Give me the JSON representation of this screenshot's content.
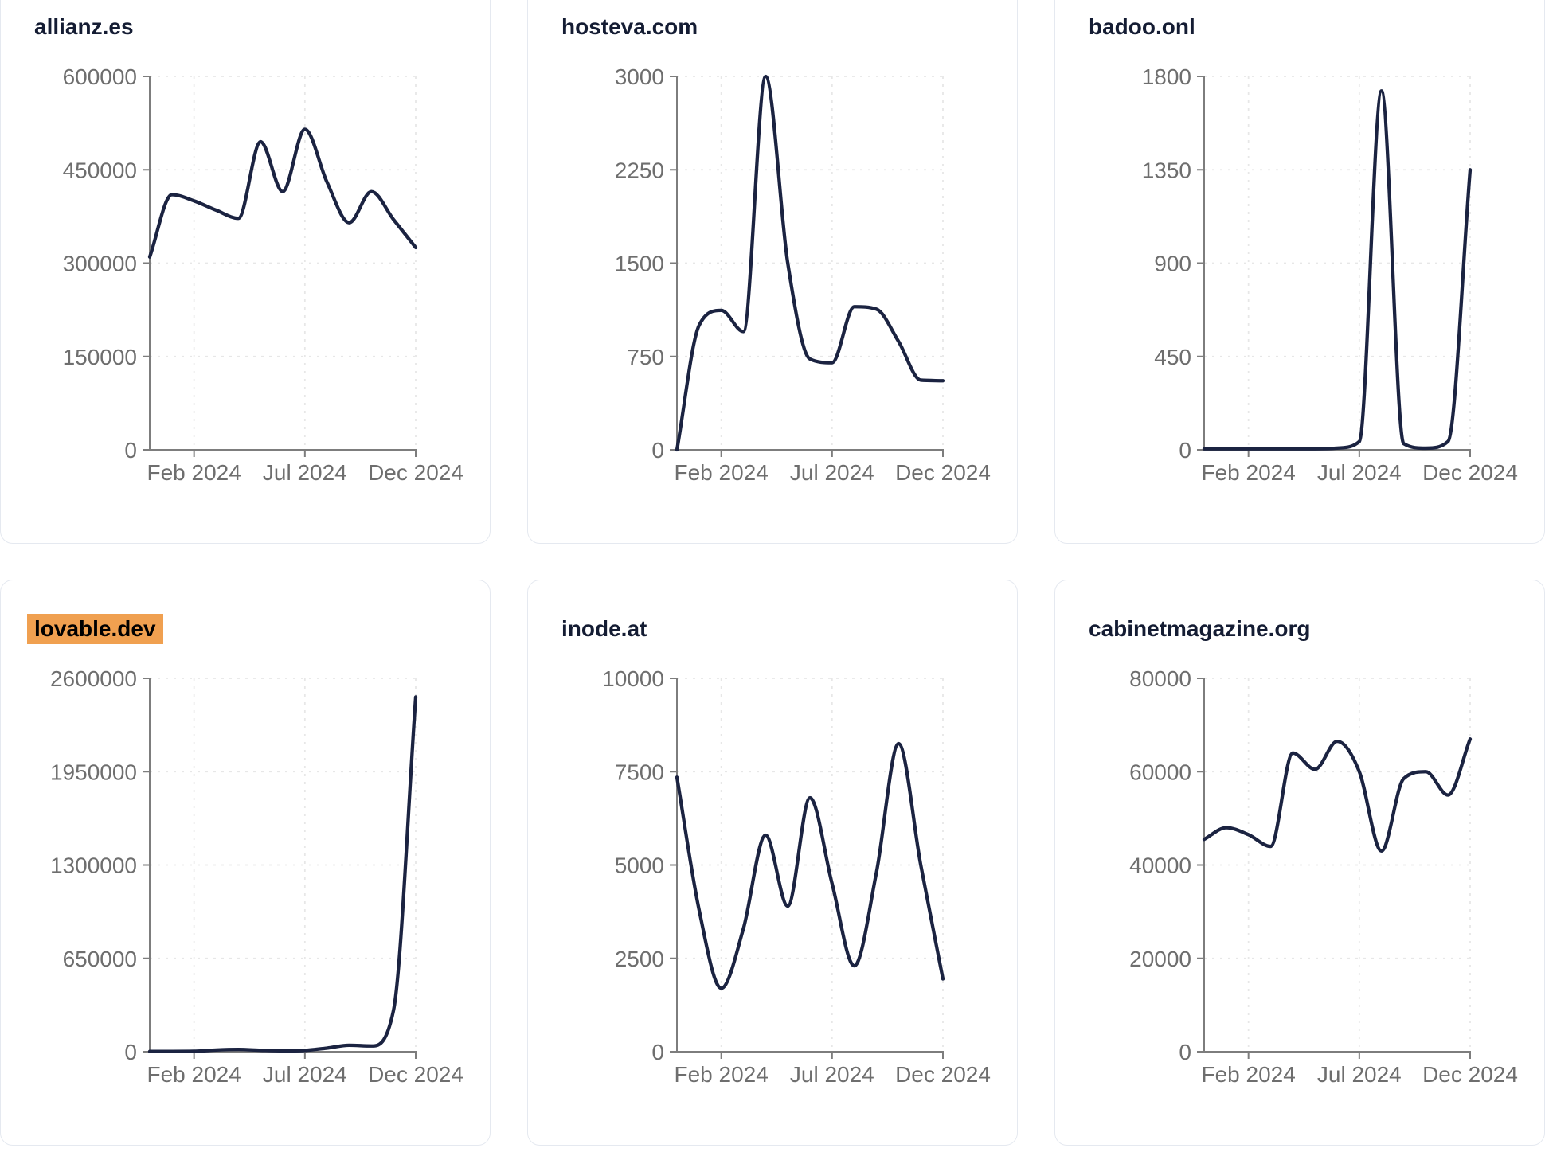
{
  "theme": {
    "highlight_color": "#f0a050",
    "line_color": "#1b2341",
    "title_color": "#141c33",
    "tick_text_color": "#6e6e6e",
    "axis_color": "#7d7d7d",
    "grid_color": "#e7e7e7",
    "card_border_color": "#e5e9f0",
    "background": "#ffffff"
  },
  "chart_data": [
    {
      "type": "line",
      "title": "allianz.es",
      "title_highlighted": false,
      "x": [
        "2023-12",
        "2024-01",
        "2024-02",
        "2024-03",
        "2024-04",
        "2024-05",
        "2024-06",
        "2024-07",
        "2024-08",
        "2024-09",
        "2024-10",
        "2024-11",
        "2024-12"
      ],
      "values": [
        310000,
        410000,
        400000,
        385000,
        372000,
        495000,
        415000,
        515000,
        430000,
        365000,
        415000,
        370000,
        325000
      ],
      "ylim": [
        0,
        600000
      ],
      "y_ticks": [
        0,
        150000,
        300000,
        450000,
        600000
      ],
      "x_ticks": [
        {
          "label": "Feb 2024",
          "index": 2
        },
        {
          "label": "Jul 2024",
          "index": 7
        },
        {
          "label": "Dec 2024",
          "index": 12
        }
      ],
      "grid": true,
      "legend": "none"
    },
    {
      "type": "line",
      "title": "hosteva.com",
      "title_highlighted": false,
      "x": [
        "2023-12",
        "2024-01",
        "2024-02",
        "2024-03",
        "2024-04",
        "2024-05",
        "2024-06",
        "2024-07",
        "2024-08",
        "2024-09",
        "2024-10",
        "2024-11",
        "2024-12"
      ],
      "values": [
        0,
        1000,
        1120,
        950,
        3000,
        1500,
        730,
        700,
        1150,
        1130,
        870,
        560,
        555
      ],
      "ylim": [
        0,
        3000
      ],
      "y_ticks": [
        0,
        750,
        1500,
        2250,
        3000
      ],
      "x_ticks": [
        {
          "label": "Feb 2024",
          "index": 2
        },
        {
          "label": "Jul 2024",
          "index": 7
        },
        {
          "label": "Dec 2024",
          "index": 12
        }
      ],
      "grid": true,
      "legend": "none"
    },
    {
      "type": "line",
      "title": "badoo.onl",
      "title_highlighted": false,
      "x": [
        "2023-12",
        "2024-01",
        "2024-02",
        "2024-03",
        "2024-04",
        "2024-05",
        "2024-06",
        "2024-07",
        "2024-08",
        "2024-09",
        "2024-10",
        "2024-11",
        "2024-12"
      ],
      "values": [
        5,
        5,
        5,
        5,
        5,
        5,
        8,
        40,
        1730,
        30,
        8,
        40,
        1350
      ],
      "ylim": [
        0,
        1800
      ],
      "y_ticks": [
        0,
        450,
        900,
        1350,
        1800
      ],
      "x_ticks": [
        {
          "label": "Feb 2024",
          "index": 2
        },
        {
          "label": "Jul 2024",
          "index": 7
        },
        {
          "label": "Dec 2024",
          "index": 12
        }
      ],
      "grid": true,
      "legend": "none"
    },
    {
      "type": "line",
      "title": "lovable.dev",
      "title_highlighted": true,
      "x": [
        "2023-12",
        "2024-01",
        "2024-02",
        "2024-03",
        "2024-04",
        "2024-05",
        "2024-06",
        "2024-07",
        "2024-08",
        "2024-09",
        "2024-10",
        "2024-11",
        "2024-12"
      ],
      "values": [
        2000,
        2000,
        3000,
        12000,
        16000,
        10000,
        6000,
        9000,
        25000,
        45000,
        40000,
        290000,
        2470000
      ],
      "ylim": [
        0,
        2600000
      ],
      "y_ticks": [
        0,
        650000,
        1300000,
        1950000,
        2600000
      ],
      "x_ticks": [
        {
          "label": "Feb 2024",
          "index": 2
        },
        {
          "label": "Jul 2024",
          "index": 7
        },
        {
          "label": "Dec 2024",
          "index": 12
        }
      ],
      "grid": true,
      "legend": "none"
    },
    {
      "type": "line",
      "title": "inode.at",
      "title_highlighted": false,
      "x": [
        "2023-12",
        "2024-01",
        "2024-02",
        "2024-03",
        "2024-04",
        "2024-05",
        "2024-06",
        "2024-07",
        "2024-08",
        "2024-09",
        "2024-10",
        "2024-11",
        "2024-12"
      ],
      "values": [
        7350,
        3800,
        1700,
        3300,
        5800,
        3900,
        6800,
        4500,
        2300,
        4800,
        8250,
        5000,
        1950
      ],
      "ylim": [
        0,
        10000
      ],
      "y_ticks": [
        0,
        2500,
        5000,
        7500,
        10000
      ],
      "x_ticks": [
        {
          "label": "Feb 2024",
          "index": 2
        },
        {
          "label": "Jul 2024",
          "index": 7
        },
        {
          "label": "Dec 2024",
          "index": 12
        }
      ],
      "grid": true,
      "legend": "none"
    },
    {
      "type": "line",
      "title": "cabinetmagazine.org",
      "title_highlighted": false,
      "x": [
        "2023-12",
        "2024-01",
        "2024-02",
        "2024-03",
        "2024-04",
        "2024-05",
        "2024-06",
        "2024-07",
        "2024-08",
        "2024-09",
        "2024-10",
        "2024-11",
        "2024-12"
      ],
      "values": [
        45500,
        48000,
        46500,
        44000,
        64000,
        60500,
        66500,
        60000,
        43000,
        58500,
        60000,
        55000,
        67000
      ],
      "ylim": [
        0,
        80000
      ],
      "y_ticks": [
        0,
        20000,
        40000,
        60000,
        80000
      ],
      "x_ticks": [
        {
          "label": "Feb 2024",
          "index": 2
        },
        {
          "label": "Jul 2024",
          "index": 7
        },
        {
          "label": "Dec 2024",
          "index": 12
        }
      ],
      "grid": true,
      "legend": "none"
    }
  ]
}
